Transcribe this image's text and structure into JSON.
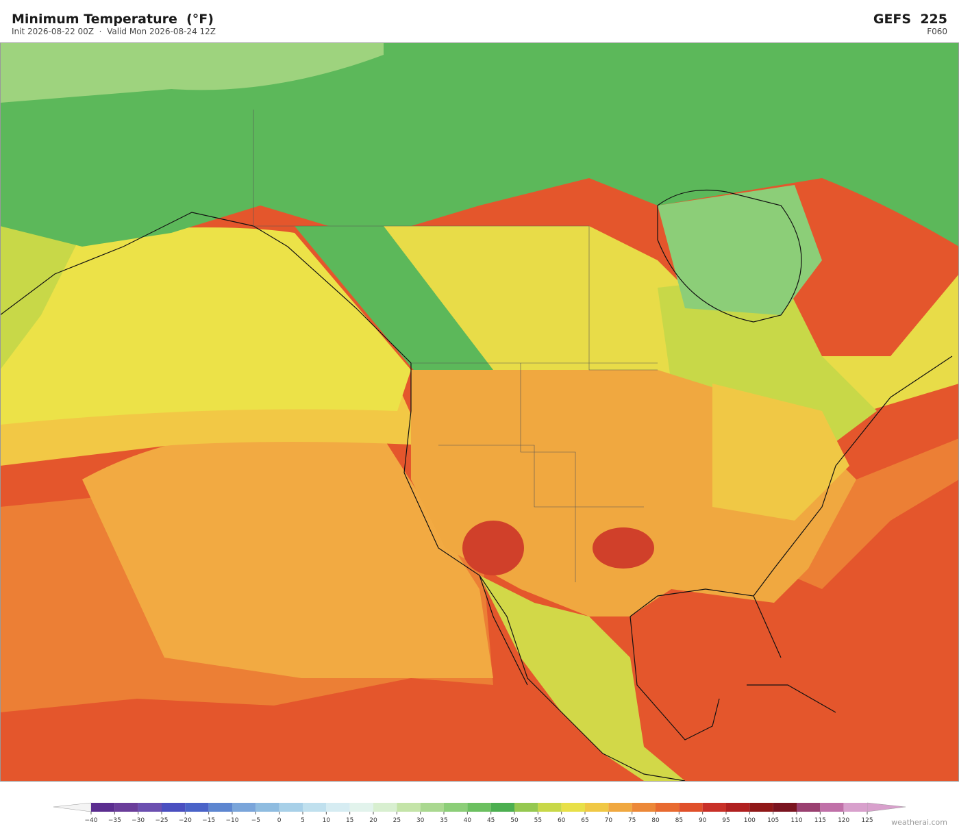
{
  "header": {
    "title": "Minimum Temperature  (°F)",
    "subtitle": "Init 2026-08-22 00Z  ·  Valid Mon 2026-08-24 12Z",
    "model": "GEFS  225",
    "forecast_hour": "F060"
  },
  "colorbar": {
    "ticks": [
      {
        "value": -40,
        "label": "−40"
      },
      {
        "value": -35,
        "label": "−35"
      },
      {
        "value": -30,
        "label": "−30"
      },
      {
        "value": -25,
        "label": "−25"
      },
      {
        "value": -20,
        "label": "−20"
      },
      {
        "value": -15,
        "label": "−15"
      },
      {
        "value": -10,
        "label": "−10"
      },
      {
        "value": -5,
        "label": "−5"
      },
      0,
      5,
      10,
      15,
      20,
      25,
      30,
      35,
      40,
      45,
      50,
      55,
      60,
      65,
      70,
      75,
      80,
      85,
      90,
      95,
      100,
      105,
      110,
      115,
      120,
      125
    ],
    "colors": [
      "#5b2d8f",
      "#6a3d9a",
      "#6b4fb0",
      "#4a4fc0",
      "#4a63c8",
      "#5d86d0",
      "#7aa5da",
      "#8fbce0",
      "#a8d0e8",
      "#c0e0ee",
      "#d6ecf2",
      "#e2f3ec",
      "#d8efd0",
      "#c4e4a8",
      "#aad890",
      "#8cce78",
      "#6cc060",
      "#4caf50",
      "#95c850",
      "#c8d848",
      "#e8e048",
      "#f0c845",
      "#f0a840",
      "#ec8838",
      "#e86a30",
      "#e0502a",
      "#c83028",
      "#b02020",
      "#901818",
      "#7a1420",
      "#9a4070",
      "#c070a8",
      "#d8a0cc"
    ]
  },
  "footer": {
    "attribution": "weatherai.com"
  }
}
